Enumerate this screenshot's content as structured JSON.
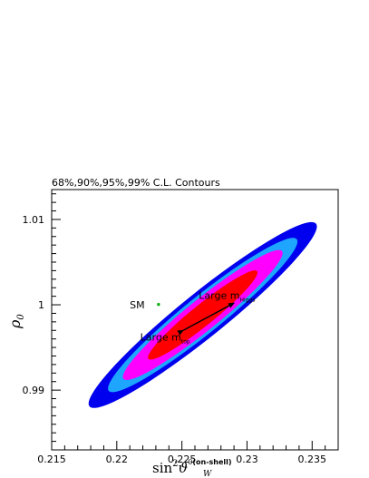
{
  "chart_data": {
    "type": "contour",
    "title": "68%,90%,95%,99% C.L. Contours",
    "xlabel": {
      "main": "sin",
      "sup": "2",
      "theta": "ϑ",
      "theta_sup": "0",
      "theta_sub": "W",
      "note": "(on-shell)"
    },
    "ylabel": {
      "main": "ρ",
      "sub": "0"
    },
    "xlim": [
      0.215,
      0.237
    ],
    "ylim": [
      0.983,
      1.0135
    ],
    "x_ticks": [
      0.215,
      0.22,
      0.225,
      0.23,
      0.235
    ],
    "x_tick_labels": [
      "0.215",
      "0.22",
      "0.225",
      "0.23",
      "0.235"
    ],
    "y_ticks": [
      0.99,
      1.0,
      1.01
    ],
    "y_tick_labels": [
      "0.99",
      "1",
      "1.01"
    ],
    "ellipse": {
      "center": [
        0.2266,
        0.9988
      ],
      "major_axis_data_endpoint": [
        0.2353,
        1.0095
      ],
      "minor_axis_data_endpoint": [
        0.2257,
        1.001
      ]
    },
    "contours": [
      {
        "name": "99%",
        "scale": 1.0,
        "color": "#0000ee"
      },
      {
        "name": "95%",
        "scale": 0.83,
        "color": "#1ea6ff"
      },
      {
        "name": "90%",
        "scale": 0.7,
        "color": "#ff00ff"
      },
      {
        "name": "68%",
        "scale": 0.48,
        "color": "#ff0000"
      }
    ],
    "annotations": {
      "sm_label": "SM",
      "sm_color": "#00aa00",
      "large_mhiggs": {
        "text": "Large m",
        "sub": "Higgs"
      },
      "large_mtop": {
        "text": "Large m",
        "sub": "top"
      },
      "arrow_start": [
        0.2251,
        0.997
      ],
      "arrow_end": [
        0.229,
        1.0002
      ]
    }
  }
}
